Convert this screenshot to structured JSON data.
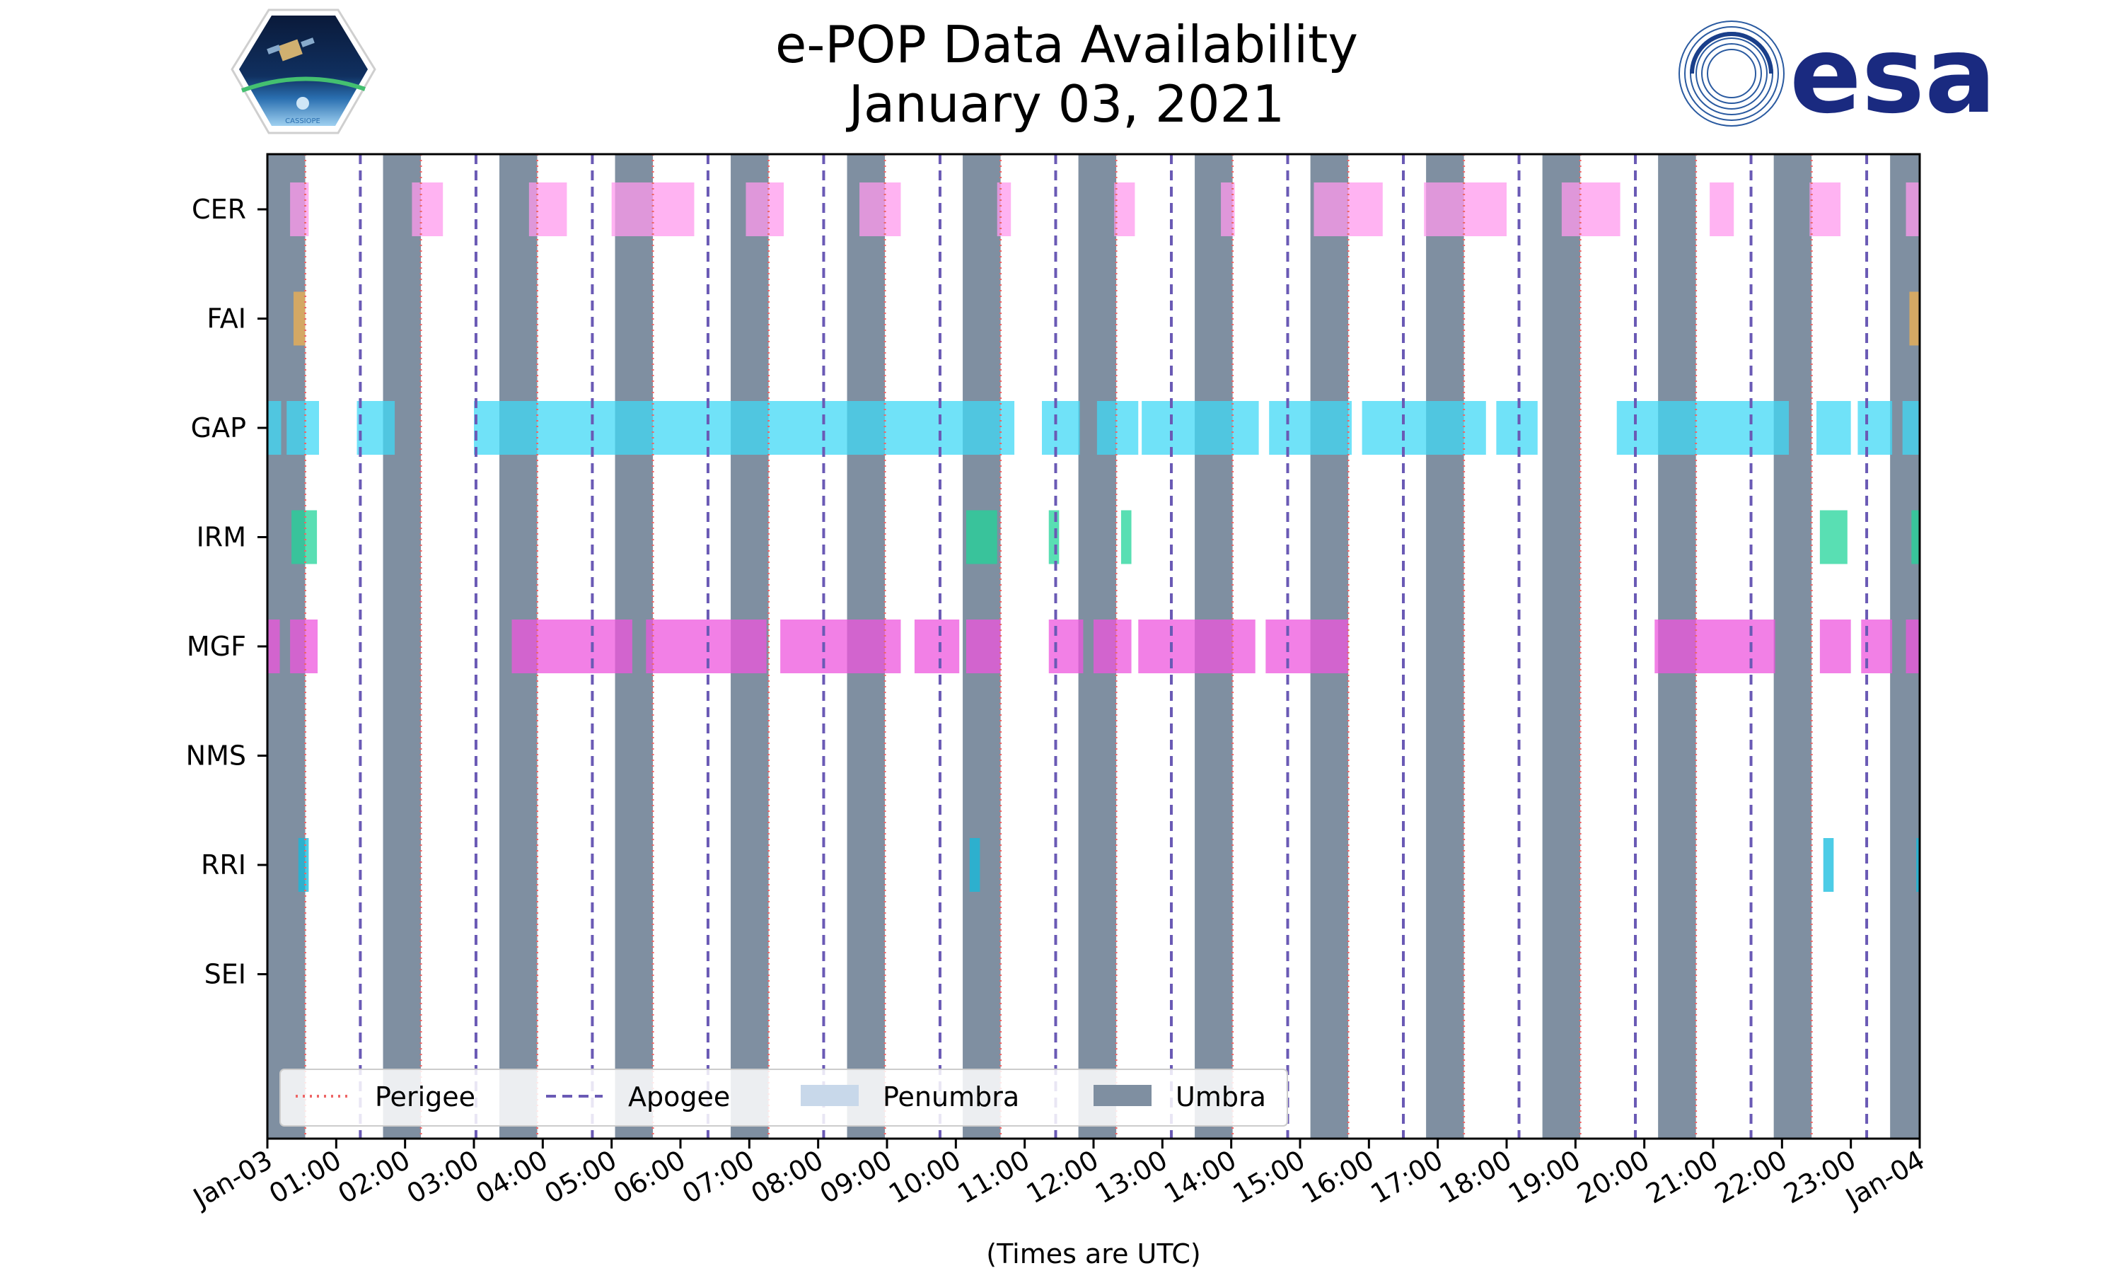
{
  "chart_data": {
    "type": "timeline",
    "title": "e-POP Data Availability",
    "subtitle": "January 03, 2021",
    "xlabel": "(Times are UTC)",
    "x_ticks": [
      "Jan-03",
      "01:00",
      "02:00",
      "03:00",
      "04:00",
      "05:00",
      "06:00",
      "07:00",
      "08:00",
      "09:00",
      "10:00",
      "11:00",
      "12:00",
      "13:00",
      "14:00",
      "15:00",
      "16:00",
      "17:00",
      "18:00",
      "19:00",
      "20:00",
      "21:00",
      "22:00",
      "23:00",
      "Jan-04"
    ],
    "xlim_hours": [
      0,
      24
    ],
    "instruments": [
      "CER",
      "FAI",
      "GAP",
      "IRM",
      "MGF",
      "NMS",
      "RRI",
      "SEI"
    ],
    "colors": {
      "CER": "#ff99ee",
      "FAI": "#f0b050",
      "GAP": "#40d8f5",
      "IRM": "#22d49a",
      "MGF": "#ee55dd",
      "RRI": "#11bbdd",
      "umbra": "#7f8fa1",
      "penumbra": "#c8d8ea",
      "perigee": "#ee6666",
      "apogee": "#6a5ab5"
    },
    "umbra_hours": [
      [
        0,
        0.55
      ],
      [
        1.68,
        2.23
      ],
      [
        3.37,
        3.92
      ],
      [
        5.05,
        5.6
      ],
      [
        6.73,
        7.28
      ],
      [
        8.42,
        8.97
      ],
      [
        10.1,
        10.65
      ],
      [
        11.78,
        12.33
      ],
      [
        13.47,
        14.02
      ],
      [
        15.15,
        15.7
      ],
      [
        16.83,
        17.38
      ],
      [
        18.52,
        19.07
      ],
      [
        20.2,
        20.75
      ],
      [
        21.88,
        22.43
      ],
      [
        23.57,
        24
      ]
    ],
    "perigee_hours": [
      0.55,
      2.23,
      3.92,
      5.6,
      7.28,
      8.97,
      10.65,
      12.33,
      14.02,
      15.7,
      17.38,
      19.07,
      20.75,
      22.43
    ],
    "apogee_hours": [
      1.35,
      3.03,
      4.72,
      6.4,
      8.08,
      9.77,
      11.45,
      13.13,
      14.82,
      16.5,
      18.18,
      19.87,
      21.55,
      23.23
    ],
    "data_hours": {
      "CER": [
        [
          0.33,
          0.6
        ],
        [
          2.1,
          2.55
        ],
        [
          3.8,
          4.35
        ],
        [
          5.0,
          6.2
        ],
        [
          6.95,
          7.5
        ],
        [
          8.6,
          9.2
        ],
        [
          10.6,
          10.8
        ],
        [
          12.3,
          12.6
        ],
        [
          13.85,
          14.05
        ],
        [
          15.2,
          16.2
        ],
        [
          16.8,
          18.0
        ],
        [
          18.8,
          19.65
        ],
        [
          20.95,
          21.3
        ],
        [
          22.4,
          22.85
        ],
        [
          23.8,
          24.0
        ]
      ],
      "FAI": [
        [
          0.38,
          0.55
        ],
        [
          23.85,
          24.0
        ]
      ],
      "GAP": [
        [
          0.0,
          0.2
        ],
        [
          0.28,
          0.75
        ],
        [
          1.3,
          1.85
        ],
        [
          3.0,
          10.85
        ],
        [
          11.25,
          11.8
        ],
        [
          12.05,
          12.65
        ],
        [
          12.7,
          14.4
        ],
        [
          14.55,
          15.75
        ],
        [
          15.9,
          17.7
        ],
        [
          17.85,
          18.45
        ],
        [
          19.6,
          22.1
        ],
        [
          22.5,
          23.0
        ],
        [
          23.1,
          23.6
        ],
        [
          23.75,
          24.0
        ]
      ],
      "IRM": [
        [
          0.35,
          0.72
        ],
        [
          10.15,
          10.6
        ],
        [
          11.35,
          11.5
        ],
        [
          12.4,
          12.55
        ],
        [
          22.55,
          22.95
        ],
        [
          23.88,
          24.0
        ]
      ],
      "MGF": [
        [
          0.0,
          0.18
        ],
        [
          0.33,
          0.73
        ],
        [
          3.55,
          5.3
        ],
        [
          5.5,
          7.25
        ],
        [
          7.45,
          9.2
        ],
        [
          9.4,
          10.05
        ],
        [
          10.15,
          10.65
        ],
        [
          11.35,
          11.85
        ],
        [
          12.0,
          12.55
        ],
        [
          12.65,
          14.35
        ],
        [
          14.5,
          15.7
        ],
        [
          20.15,
          21.9
        ],
        [
          22.55,
          23.0
        ],
        [
          23.15,
          23.6
        ],
        [
          23.8,
          24.0
        ]
      ],
      "NMS": [],
      "RRI": [
        [
          0.45,
          0.6
        ],
        [
          10.2,
          10.35
        ],
        [
          22.6,
          22.75
        ],
        [
          23.95,
          24.0
        ]
      ],
      "SEI": []
    },
    "legend": {
      "placement": "bottom-left",
      "items": [
        {
          "label": "Perigee",
          "style": "dotted-line",
          "color": "#ee6666"
        },
        {
          "label": "Apogee",
          "style": "dashed-line",
          "color": "#6a5ab5"
        },
        {
          "label": "Penumbra",
          "style": "patch",
          "color": "#c8d8ea"
        },
        {
          "label": "Umbra",
          "style": "patch",
          "color": "#7f8fa1"
        }
      ]
    }
  },
  "logos": {
    "left_badge_text": "CASSIOPE",
    "right_logo_text": "esa"
  }
}
